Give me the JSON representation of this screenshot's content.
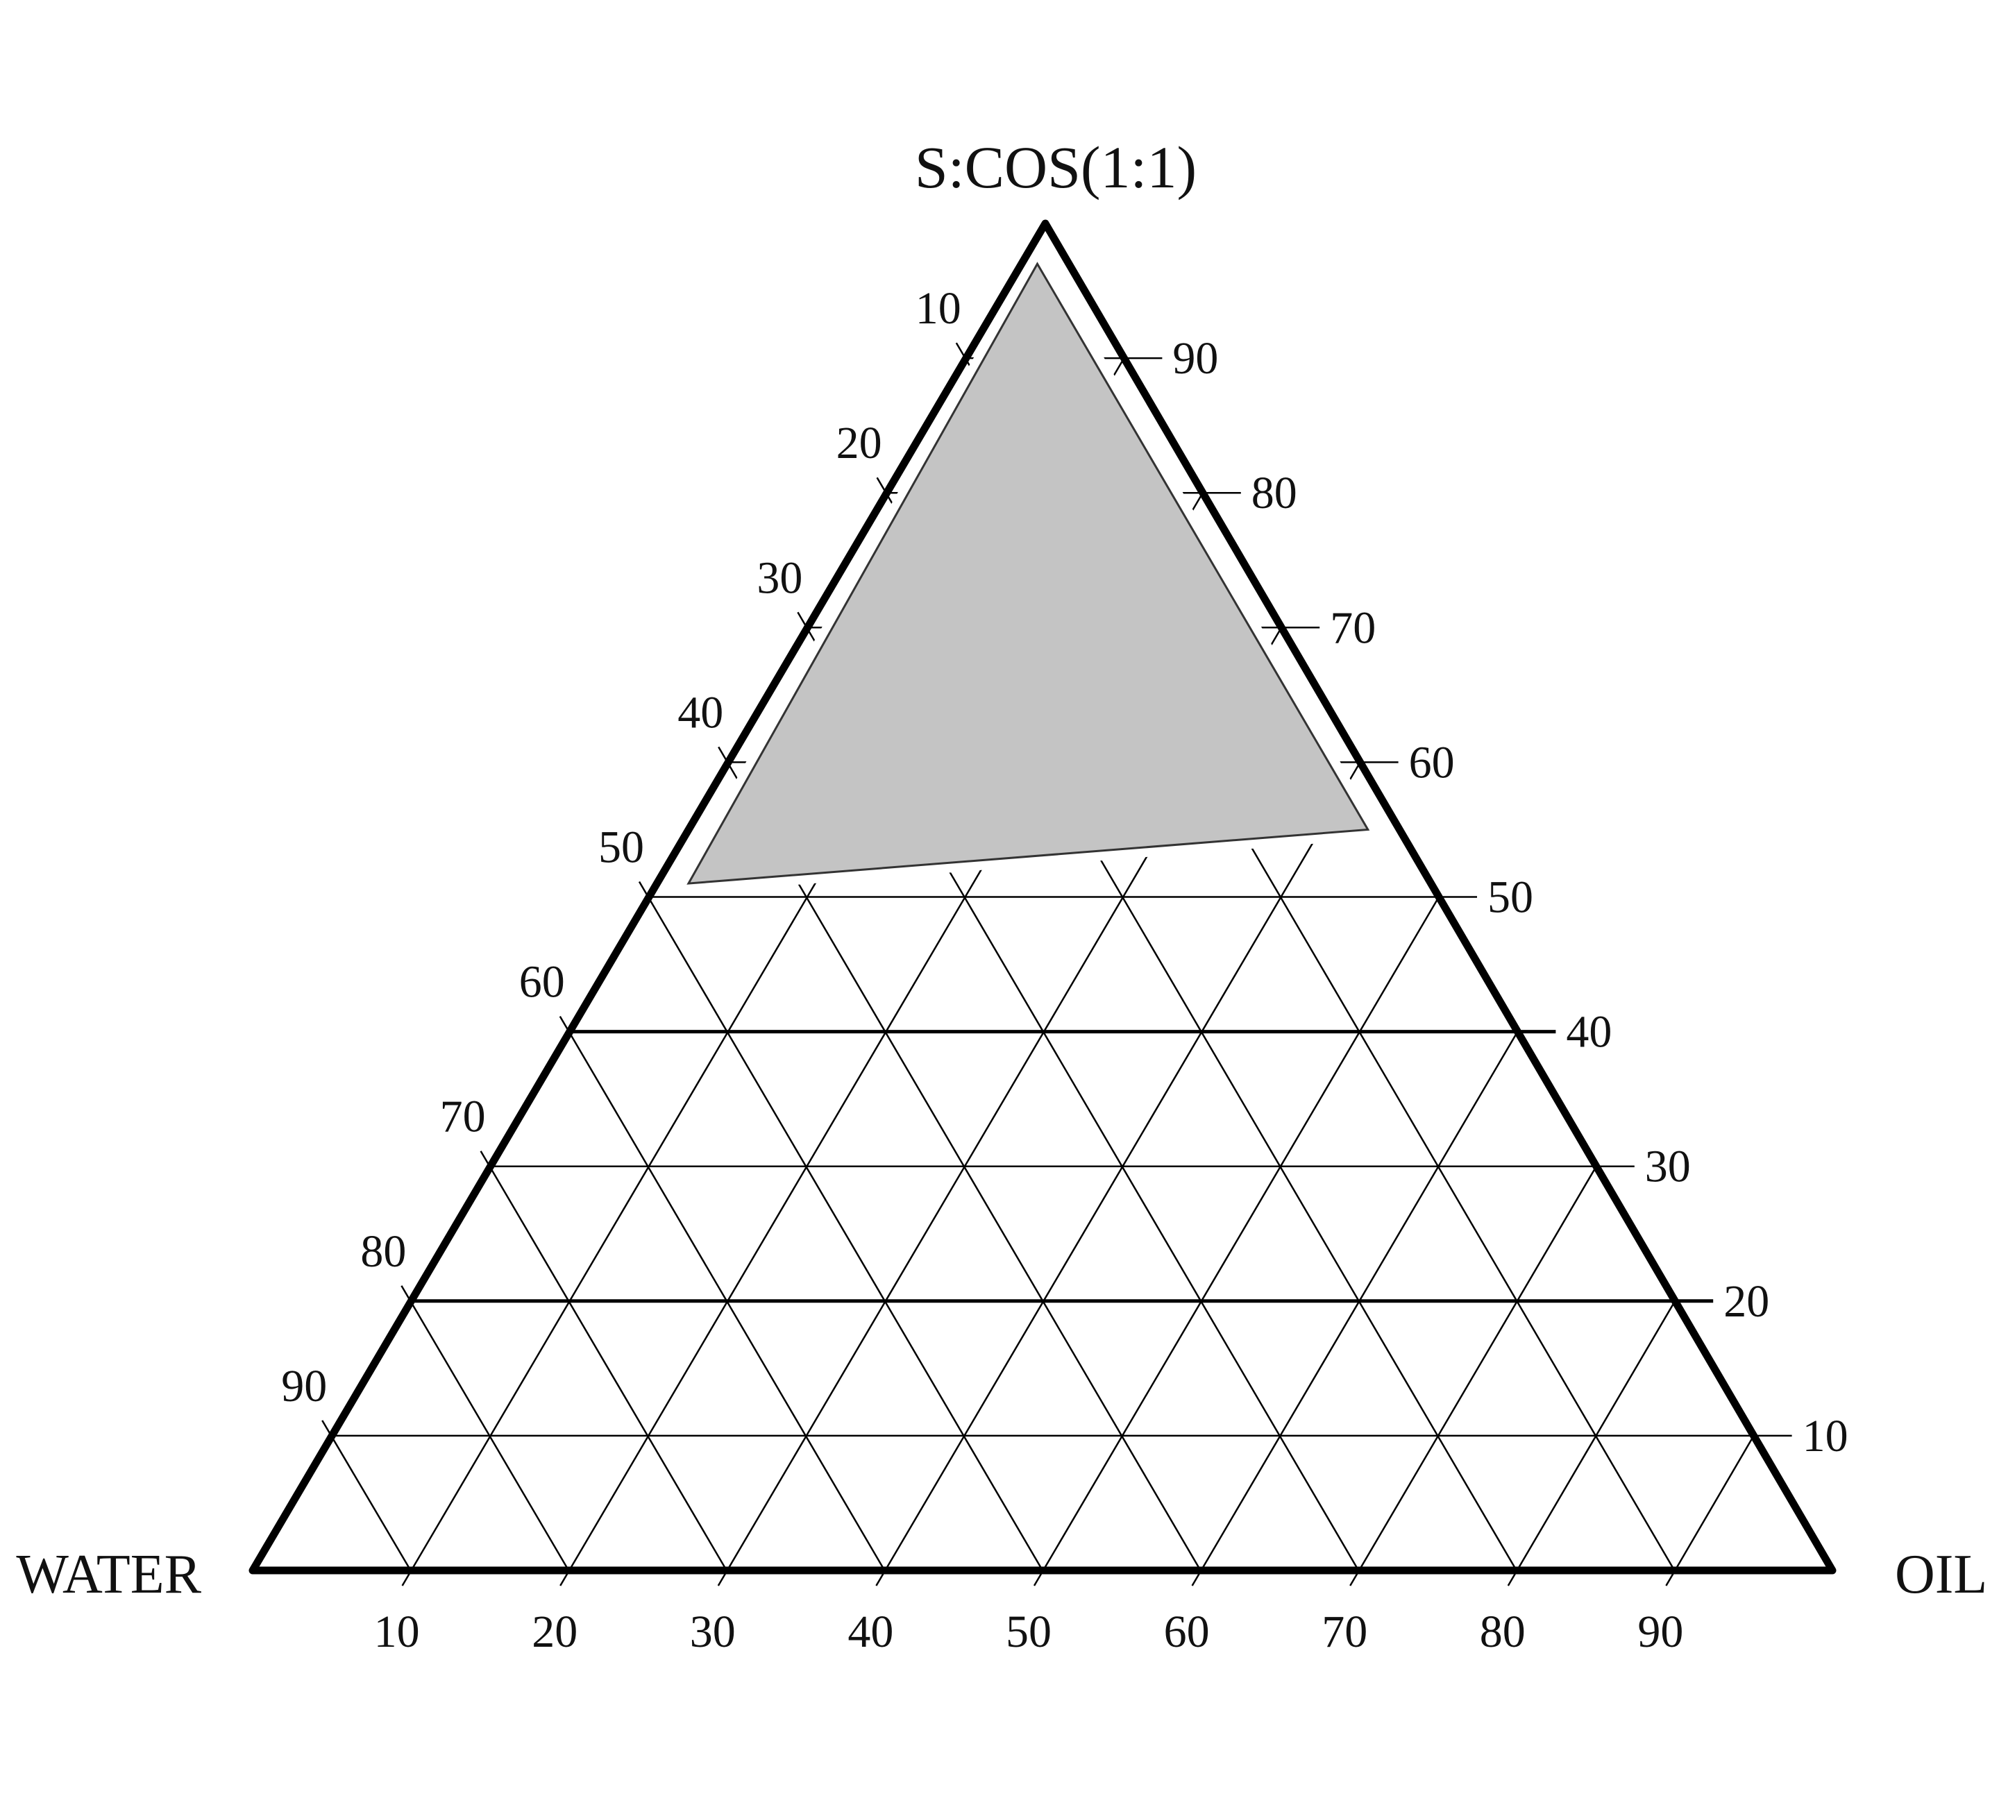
{
  "chart_data": {
    "type": "ternary",
    "apex_labels": {
      "top": "S:COS(1:1)",
      "left": "WATER",
      "right": "OIL"
    },
    "ticks": [
      10,
      20,
      30,
      40,
      50,
      60,
      70,
      80,
      90
    ],
    "axes": {
      "left_edge": {
        "component": "WATER",
        "tick_labels": [
          "10",
          "20",
          "30",
          "40",
          "50",
          "60",
          "70",
          "80",
          "90"
        ]
      },
      "right_edge": {
        "component": "S:COS(1:1)",
        "tick_labels": [
          "90",
          "80",
          "70",
          "60",
          "50",
          "40",
          "30",
          "20",
          "10"
        ]
      },
      "bottom_edge": {
        "component": "OIL",
        "tick_labels": [
          "10",
          "20",
          "30",
          "40",
          "50",
          "60",
          "70",
          "80",
          "90"
        ]
      }
    },
    "grid": true,
    "emphasized_gridlines_scos": [
      20,
      40
    ],
    "shaded_region": {
      "fill": "#c4c4c4",
      "vertices": [
        {
          "scos": 97,
          "oil": 1,
          "water": 2
        },
        {
          "scos": 51,
          "oil": 2,
          "water": 47
        },
        {
          "scos": 55,
          "oil": 43,
          "water": 2
        }
      ]
    }
  },
  "colors": {
    "line": "#000000",
    "region": "#c4c4c4"
  }
}
